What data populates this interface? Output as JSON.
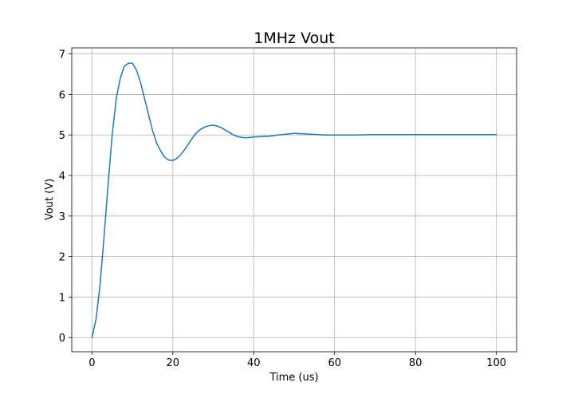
{
  "chart_data": {
    "type": "line",
    "title": "1MHz Vout",
    "xlabel": "Time (us)",
    "ylabel": "Vout (V)",
    "xlim": [
      -5,
      105
    ],
    "ylim": [
      -0.35,
      7.15
    ],
    "xticks": [
      0,
      20,
      40,
      60,
      80,
      100
    ],
    "yticks": [
      0,
      1,
      2,
      3,
      4,
      5,
      6,
      7
    ],
    "grid": true,
    "legend": "none",
    "series": [
      {
        "color": "#1f77b4",
        "x": [
          0,
          1,
          2,
          3,
          4,
          5,
          6,
          7,
          8,
          9,
          10,
          11,
          12,
          13,
          14,
          15,
          16,
          17,
          18,
          19,
          20,
          21,
          22,
          23,
          24,
          25,
          26,
          27,
          28,
          29,
          30,
          31,
          32,
          33,
          34,
          35,
          36,
          37,
          38,
          39,
          40,
          42,
          44,
          46,
          48,
          50,
          52,
          54,
          56,
          58,
          60,
          65,
          70,
          75,
          80,
          85,
          90,
          95,
          100
        ],
        "y": [
          0.0,
          0.45,
          1.3,
          2.5,
          3.8,
          5.0,
          5.9,
          6.4,
          6.7,
          6.77,
          6.77,
          6.6,
          6.3,
          5.9,
          5.5,
          5.1,
          4.8,
          4.6,
          4.45,
          4.38,
          4.37,
          4.42,
          4.52,
          4.65,
          4.8,
          4.95,
          5.07,
          5.15,
          5.2,
          5.23,
          5.24,
          5.22,
          5.18,
          5.12,
          5.06,
          5.0,
          4.96,
          4.94,
          4.93,
          4.94,
          4.95,
          4.96,
          4.97,
          5.0,
          5.02,
          5.04,
          5.03,
          5.02,
          5.01,
          5.0,
          5.0,
          5.0,
          5.01,
          5.01,
          5.01,
          5.01,
          5.01,
          5.01,
          5.01
        ]
      }
    ]
  }
}
